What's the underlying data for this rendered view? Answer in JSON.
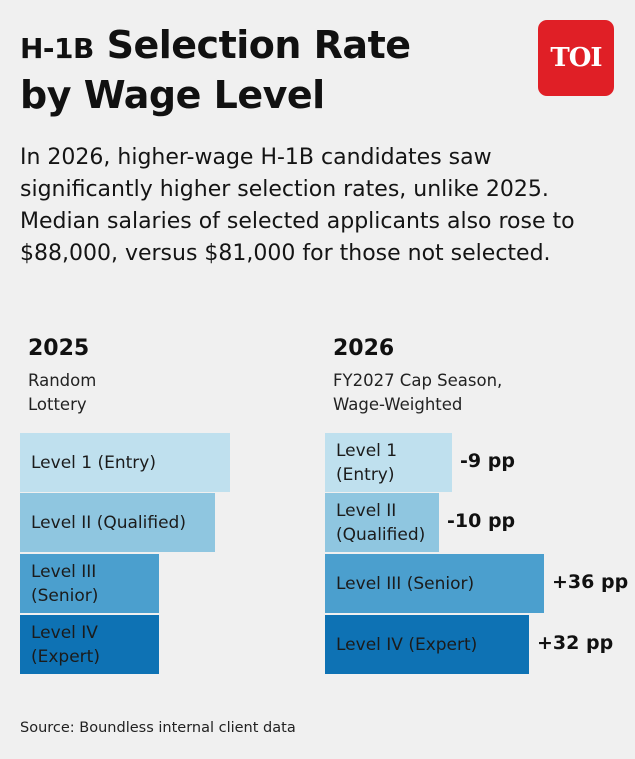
{
  "header": {
    "title_prefix": "H-1B",
    "title_rest_line1": " Selection Rate",
    "title_line2": "by Wage Level",
    "logo_text": "TOI",
    "subtitle": "In 2026, higher-wage H-1B candidates saw significantly higher selection rates, unlike 2025. Median salaries of selected applicants also rose to $88,000, versus $81,000 for those not selected."
  },
  "colors": {
    "level1": "#bfe0ee",
    "level2": "#8fc6e0",
    "level3": "#4b9fce",
    "level4": "#0e72b4",
    "logo": "#e01f26",
    "background": "#f0f0f0"
  },
  "chart_data": [
    {
      "type": "bar",
      "title": "2025",
      "subtitle": "Random\nLottery",
      "categories": [
        "Level 1 (Entry)",
        "Level II (Qualified)",
        "Level III\n(Senior)",
        "Level IV\n(Expert)"
      ],
      "relative_values": [
        1.0,
        0.93,
        0.66,
        0.66
      ]
    },
    {
      "type": "bar",
      "title": "2026",
      "subtitle": "FY2027 Cap Season,\nWage-Weighted",
      "categories": [
        "Level 1\n(Entry)",
        "Level II\n(Qualified)",
        "Level III (Senior)",
        "Level IV (Expert)"
      ],
      "relative_values": [
        0.58,
        0.52,
        1.0,
        0.93
      ],
      "change_labels": [
        "-9 pp",
        "-10 pp",
        "+36 pp",
        "+32 pp"
      ]
    }
  ],
  "footer": {
    "source": "Source: Boundless internal client data"
  }
}
